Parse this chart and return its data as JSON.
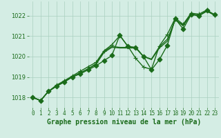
{
  "xlabel": "Graphe pression niveau de la mer (hPa)",
  "background_color": "#d4ede4",
  "grid_color": "#aacfbf",
  "line_color": "#1a6b1a",
  "xlim": [
    -0.5,
    23.5
  ],
  "ylim": [
    1017.5,
    1022.7
  ],
  "yticks": [
    1018,
    1019,
    1020,
    1021,
    1022
  ],
  "xticks": [
    0,
    1,
    2,
    3,
    4,
    5,
    6,
    7,
    8,
    9,
    10,
    11,
    12,
    13,
    14,
    15,
    16,
    17,
    18,
    19,
    20,
    21,
    22,
    23
  ],
  "series": [
    {
      "y": [
        1018.0,
        1017.85,
        1018.3,
        1018.55,
        1018.75,
        1019.0,
        1019.15,
        1019.35,
        1019.55,
        1019.8,
        1020.05,
        1021.05,
        1020.5,
        1020.45,
        1020.0,
        1019.35,
        1019.85,
        1020.55,
        1021.85,
        1021.35,
        1022.05,
        1022.0,
        1022.25,
        1022.05
      ],
      "marker": "D",
      "markersize": 3.5,
      "linewidth": 1.0
    },
    {
      "y": [
        1018.0,
        1017.85,
        1018.3,
        1018.55,
        1018.78,
        1019.0,
        1019.2,
        1019.4,
        1019.62,
        1020.2,
        1020.45,
        1020.42,
        1020.42,
        1020.42,
        1020.0,
        1019.85,
        1020.42,
        1020.75,
        1021.82,
        1021.5,
        1022.08,
        1022.0,
        1022.22,
        1022.02
      ],
      "marker": null,
      "markersize": 0,
      "linewidth": 1.0
    },
    {
      "y": [
        1018.0,
        1017.85,
        1018.3,
        1018.55,
        1018.78,
        1019.0,
        1019.2,
        1019.4,
        1019.65,
        1020.25,
        1020.5,
        1020.45,
        1020.45,
        1020.45,
        1020.0,
        1019.88,
        1020.48,
        1020.85,
        1021.78,
        1021.55,
        1022.08,
        1022.02,
        1022.22,
        1022.02
      ],
      "marker": null,
      "markersize": 0,
      "linewidth": 1.0
    },
    {
      "y": [
        1018.0,
        1017.85,
        1018.3,
        1018.6,
        1018.82,
        1019.05,
        1019.28,
        1019.5,
        1019.72,
        1020.28,
        1020.58,
        1021.02,
        1020.52,
        1019.92,
        1019.48,
        1019.38,
        1020.52,
        1021.08,
        1021.88,
        1021.58,
        1022.12,
        1022.08,
        1022.28,
        1022.02
      ],
      "marker": "+",
      "markersize": 5,
      "linewidth": 1.0
    }
  ],
  "xlabel_fontsize": 7,
  "xlabel_fontweight": "bold",
  "ytick_fontsize": 6,
  "xtick_fontsize": 5.5
}
